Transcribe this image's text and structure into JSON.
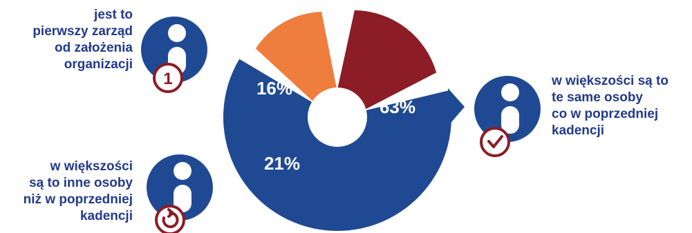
{
  "chart_data": {
    "type": "pie",
    "title": "",
    "slices": [
      {
        "label": "jest to pierwszy zarząd od założenia organizacji",
        "value": 16,
        "value_label": "16%",
        "color": "#ef7d3d"
      },
      {
        "label": "w większości są to inne osoby niż w poprzedniej kadencji",
        "value": 21,
        "value_label": "21%",
        "color": "#8c1c25"
      },
      {
        "label": "w większości są to te same osoby co w poprzedniej kadencji",
        "value": 63,
        "value_label": "63%",
        "color": "#1f4a93"
      }
    ]
  },
  "callouts": {
    "first_board": {
      "lines": [
        "jest to",
        "pierwszy zarząd",
        "od założenia",
        "organizacji"
      ],
      "badge": "1",
      "badge_icon": "number-one-icon"
    },
    "other_people": {
      "lines": [
        "w większości",
        "są to inne osoby",
        "niż w poprzedniej",
        "kadencji"
      ],
      "badge_icon": "refresh-icon"
    },
    "same_people": {
      "lines": [
        "w większości są to",
        "te same osoby",
        "co w poprzedniej",
        "kadencji"
      ],
      "badge_icon": "checkmark-icon"
    }
  },
  "colors": {
    "text": "#223a8c",
    "person_circle": "#1f4a93",
    "badge_ring": "#8c1c25"
  }
}
